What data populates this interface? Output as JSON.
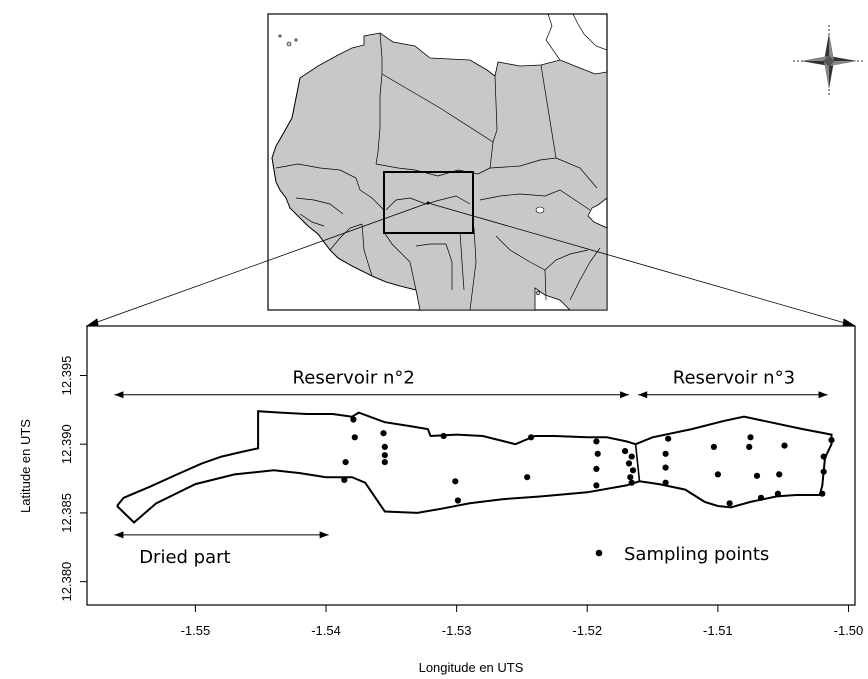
{
  "chart_data": {
    "type": "scatter",
    "xlabel": "Longitude en UTS",
    "ylabel": "Latitude en UTS",
    "xlim": [
      -1.5583,
      -1.4995
    ],
    "ylim": [
      12.3783,
      12.3986
    ],
    "x_ticks": [
      -1.55,
      -1.54,
      -1.53,
      -1.52,
      -1.51,
      -1.5
    ],
    "y_ticks": [
      12.38,
      12.385,
      12.39,
      12.395
    ],
    "x_tick_labels": [
      "-1.55",
      "-1.54",
      "-1.53",
      "-1.52",
      "-1.51",
      "-1.50"
    ],
    "y_tick_labels": [
      "12.380",
      "12.385",
      "12.390",
      "12.395"
    ],
    "grid": false,
    "series": [
      {
        "name": "Sampling points",
        "marker_color": "#000000",
        "points": [
          [
            -1.5379,
            12.3918
          ],
          [
            -1.5378,
            12.3905
          ],
          [
            -1.5385,
            12.3887
          ],
          [
            -1.5386,
            12.3874
          ],
          [
            -1.5356,
            12.3908
          ],
          [
            -1.5355,
            12.3898
          ],
          [
            -1.5355,
            12.3892
          ],
          [
            -1.5355,
            12.3887
          ],
          [
            -1.531,
            12.3906
          ],
          [
            -1.5301,
            12.3873
          ],
          [
            -1.5299,
            12.3859
          ],
          [
            -1.5243,
            12.3905
          ],
          [
            -1.5246,
            12.3876
          ],
          [
            -1.5193,
            12.3902
          ],
          [
            -1.5192,
            12.3893
          ],
          [
            -1.5193,
            12.3882
          ],
          [
            -1.5193,
            12.387
          ],
          [
            -1.5171,
            12.3895
          ],
          [
            -1.5166,
            12.3891
          ],
          [
            -1.5168,
            12.3886
          ],
          [
            -1.5165,
            12.3881
          ],
          [
            -1.5167,
            12.3876
          ],
          [
            -1.5166,
            12.3872
          ],
          [
            -1.5138,
            12.3904
          ],
          [
            -1.514,
            12.3893
          ],
          [
            -1.514,
            12.3883
          ],
          [
            -1.514,
            12.3872
          ],
          [
            -1.5103,
            12.3898
          ],
          [
            -1.51,
            12.3878
          ],
          [
            -1.5091,
            12.3857
          ],
          [
            -1.5075,
            12.3905
          ],
          [
            -1.5076,
            12.3898
          ],
          [
            -1.507,
            12.3877
          ],
          [
            -1.5067,
            12.3861
          ],
          [
            -1.5049,
            12.3899
          ],
          [
            -1.5053,
            12.3878
          ],
          [
            -1.5054,
            12.3864
          ],
          [
            -1.5019,
            12.3891
          ],
          [
            -1.5019,
            12.388
          ],
          [
            -1.5013,
            12.3903
          ],
          [
            -1.502,
            12.3864
          ]
        ]
      }
    ],
    "annotations": [
      {
        "label": "Reservoir n°2",
        "x_from": -1.5562,
        "x_to": -1.5168,
        "y": 12.3936
      },
      {
        "label": "Reservoir n°3",
        "x_from": -1.5161,
        "x_to": -1.5016,
        "y": 12.3936
      },
      {
        "label": "Dried part",
        "x_from": -1.5562,
        "x_to": -1.5398,
        "y": 12.3834
      }
    ],
    "legend": {
      "label": "Sampling points",
      "placement": "bottom-right"
    },
    "outline": {
      "north": [
        [
          -1.556,
          12.3855
        ],
        [
          -1.5555,
          12.3861
        ],
        [
          -1.5535,
          12.3869
        ],
        [
          -1.5514,
          12.3878
        ],
        [
          -1.5495,
          12.3886
        ],
        [
          -1.548,
          12.3891
        ],
        [
          -1.5462,
          12.3895
        ],
        [
          -1.5452,
          12.3897
        ],
        [
          -1.5452,
          12.3924
        ],
        [
          -1.5435,
          12.3923
        ],
        [
          -1.5415,
          12.3922
        ],
        [
          -1.5395,
          12.3922
        ],
        [
          -1.538,
          12.392
        ],
        [
          -1.5375,
          12.3923
        ],
        [
          -1.5355,
          12.3916
        ],
        [
          -1.5335,
          12.3913
        ],
        [
          -1.5322,
          12.3911
        ],
        [
          -1.532,
          12.3906
        ],
        [
          -1.53,
          12.3907
        ],
        [
          -1.528,
          12.3906
        ],
        [
          -1.5255,
          12.39
        ],
        [
          -1.524,
          12.3906
        ],
        [
          -1.5225,
          12.3906
        ],
        [
          -1.52,
          12.3905
        ],
        [
          -1.5185,
          12.3905
        ],
        [
          -1.517,
          12.3902
        ],
        [
          -1.5163,
          12.39
        ],
        [
          -1.515,
          12.3905
        ],
        [
          -1.512,
          12.3911
        ],
        [
          -1.5095,
          12.3917
        ],
        [
          -1.508,
          12.392
        ],
        [
          -1.5065,
          12.3917
        ],
        [
          -1.5035,
          12.3911
        ],
        [
          -1.5013,
          12.3907
        ]
      ],
      "south": [
        [
          -1.5013,
          12.3907
        ],
        [
          -1.5013,
          12.39
        ],
        [
          -1.5018,
          12.389
        ],
        [
          -1.502,
          12.387
        ],
        [
          -1.5022,
          12.3863
        ],
        [
          -1.504,
          12.3863
        ],
        [
          -1.5055,
          12.3862
        ],
        [
          -1.5075,
          12.3858
        ],
        [
          -1.509,
          12.3854
        ],
        [
          -1.51,
          12.3855
        ],
        [
          -1.511,
          12.3858
        ],
        [
          -1.5125,
          12.3867
        ],
        [
          -1.5145,
          12.3871
        ],
        [
          -1.516,
          12.3873
        ],
        [
          -1.517,
          12.387
        ],
        [
          -1.52,
          12.3865
        ],
        [
          -1.5235,
          12.3862
        ],
        [
          -1.5265,
          12.386
        ],
        [
          -1.529,
          12.3857
        ],
        [
          -1.5312,
          12.3853
        ],
        [
          -1.533,
          12.385
        ],
        [
          -1.5355,
          12.3851
        ],
        [
          -1.537,
          12.3872
        ],
        [
          -1.538,
          12.3876
        ],
        [
          -1.54,
          12.3876
        ],
        [
          -1.542,
          12.3879
        ],
        [
          -1.544,
          12.3881
        ],
        [
          -1.547,
          12.3878
        ],
        [
          -1.55,
          12.3871
        ],
        [
          -1.553,
          12.3857
        ],
        [
          -1.5547,
          12.3843
        ],
        [
          -1.556,
          12.3855
        ]
      ]
    }
  },
  "inset_map": {
    "land_color": "#c8c8c8",
    "water_color": "#ffffff",
    "border_color": "#000000"
  },
  "compass": {
    "icon": "compass-rose-icon"
  }
}
